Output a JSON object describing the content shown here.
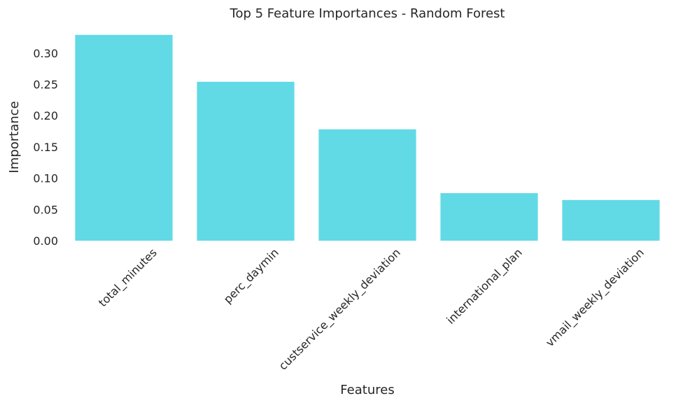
{
  "chart_data": {
    "type": "bar",
    "title": "Top 5 Feature Importances - Random Forest",
    "xlabel": "Features",
    "ylabel": "Importance",
    "categories": [
      "total_minutes",
      "perc_daymin",
      "custservice_weekly_deviation",
      "international_plan",
      "vmail_weekly_deviation"
    ],
    "values": [
      0.329,
      0.254,
      0.178,
      0.076,
      0.065
    ],
    "ylim": [
      0,
      0.34
    ],
    "yticks": [
      0.0,
      0.05,
      0.1,
      0.15,
      0.2,
      0.25,
      0.3
    ],
    "ytick_labels": [
      "0.00",
      "0.05",
      "0.10",
      "0.15",
      "0.20",
      "0.25",
      "0.30"
    ],
    "grid": false,
    "legend": "none",
    "bar_color": "#62dae6"
  }
}
